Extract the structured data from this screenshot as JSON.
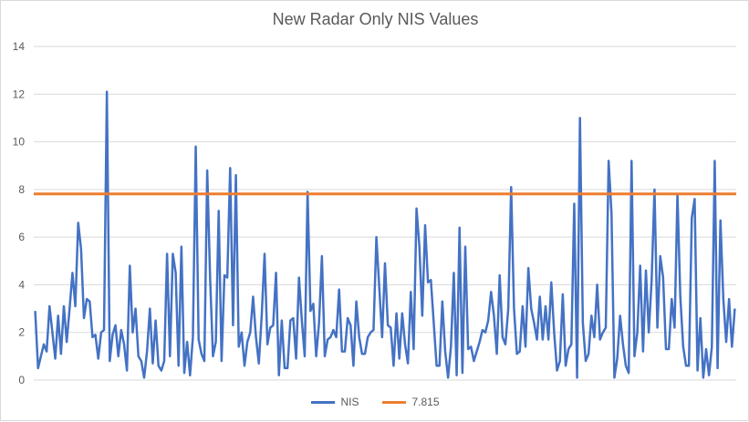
{
  "chart_data": {
    "type": "line",
    "title": "New Radar Only NIS Values",
    "xlabel": "",
    "ylabel": "",
    "ylim": [
      0,
      14
    ],
    "y_ticks": [
      0,
      2,
      4,
      6,
      8,
      10,
      12,
      14
    ],
    "grid": true,
    "legend_position": "bottom",
    "series": [
      {
        "name": "NIS",
        "color": "#4472C4",
        "values": [
          2.9,
          0.5,
          1.0,
          1.5,
          1.2,
          3.1,
          2.0,
          0.9,
          2.7,
          1.1,
          3.1,
          1.6,
          3.0,
          4.5,
          3.1,
          6.6,
          5.5,
          2.6,
          3.4,
          3.3,
          1.8,
          1.9,
          0.9,
          2.0,
          2.1,
          12.1,
          0.8,
          1.9,
          2.3,
          1.0,
          2.1,
          1.5,
          0.4,
          4.8,
          2.0,
          3.0,
          1.0,
          0.8,
          0.1,
          1.2,
          3.0,
          0.7,
          2.5,
          0.6,
          0.4,
          0.8,
          5.3,
          1.0,
          5.3,
          4.5,
          0.6,
          5.6,
          0.3,
          1.6,
          0.2,
          1.8,
          9.8,
          1.7,
          1.1,
          0.8,
          8.8,
          4.3,
          1.0,
          1.6,
          7.1,
          0.8,
          4.4,
          4.3,
          8.9,
          2.3,
          8.6,
          1.4,
          2.0,
          0.6,
          1.6,
          2.0,
          3.5,
          1.8,
          0.7,
          2.7,
          5.3,
          1.5,
          2.2,
          2.3,
          4.5,
          0.2,
          2.5,
          0.5,
          0.5,
          2.5,
          2.6,
          0.9,
          4.3,
          2.5,
          1.0,
          7.9,
          2.9,
          3.2,
          1.0,
          2.4,
          5.2,
          1.0,
          1.7,
          1.8,
          2.1,
          1.8,
          3.8,
          1.2,
          1.2,
          2.6,
          2.3,
          0.6,
          3.3,
          1.8,
          1.1,
          1.1,
          1.8,
          2.0,
          2.1,
          6.0,
          3.9,
          1.8,
          4.9,
          2.3,
          2.2,
          0.6,
          2.8,
          0.9,
          2.8,
          1.5,
          0.7,
          3.7,
          1.3,
          7.2,
          5.6,
          2.7,
          6.5,
          4.1,
          4.2,
          2.4,
          0.6,
          0.6,
          3.3,
          1.2,
          0.1,
          1.4,
          4.5,
          0.2,
          6.4,
          0.3,
          5.6,
          1.3,
          1.4,
          0.8,
          1.2,
          1.6,
          2.1,
          2.0,
          2.5,
          3.7,
          2.7,
          1.1,
          4.4,
          1.8,
          1.5,
          3.0,
          8.1,
          3.0,
          1.1,
          1.2,
          3.1,
          1.4,
          4.7,
          3.0,
          2.4,
          1.7,
          3.5,
          1.7,
          3.1,
          1.7,
          4.1,
          2.0,
          0.4,
          0.8,
          3.6,
          0.6,
          1.3,
          1.5,
          7.4,
          0.1,
          11.0,
          2.4,
          0.8,
          1.1,
          2.7,
          1.8,
          4.0,
          1.7,
          2.0,
          2.2,
          9.2,
          7.0,
          0.1,
          0.9,
          2.7,
          1.5,
          0.6,
          0.3,
          9.2,
          1.0,
          2.0,
          4.8,
          1.2,
          4.6,
          2.0,
          4.2,
          8.0,
          2.2,
          5.2,
          4.3,
          1.3,
          1.3,
          3.4,
          2.2,
          7.8,
          3.5,
          1.4,
          0.6,
          0.6,
          6.8,
          7.6,
          0.4,
          2.6,
          0.1,
          1.3,
          0.2,
          1.4,
          9.2,
          0.5,
          6.7,
          3.4,
          1.6,
          3.4,
          1.4,
          3.0
        ]
      },
      {
        "name": "7.815",
        "color": "#ED7D31",
        "constant": 7.815
      }
    ]
  }
}
